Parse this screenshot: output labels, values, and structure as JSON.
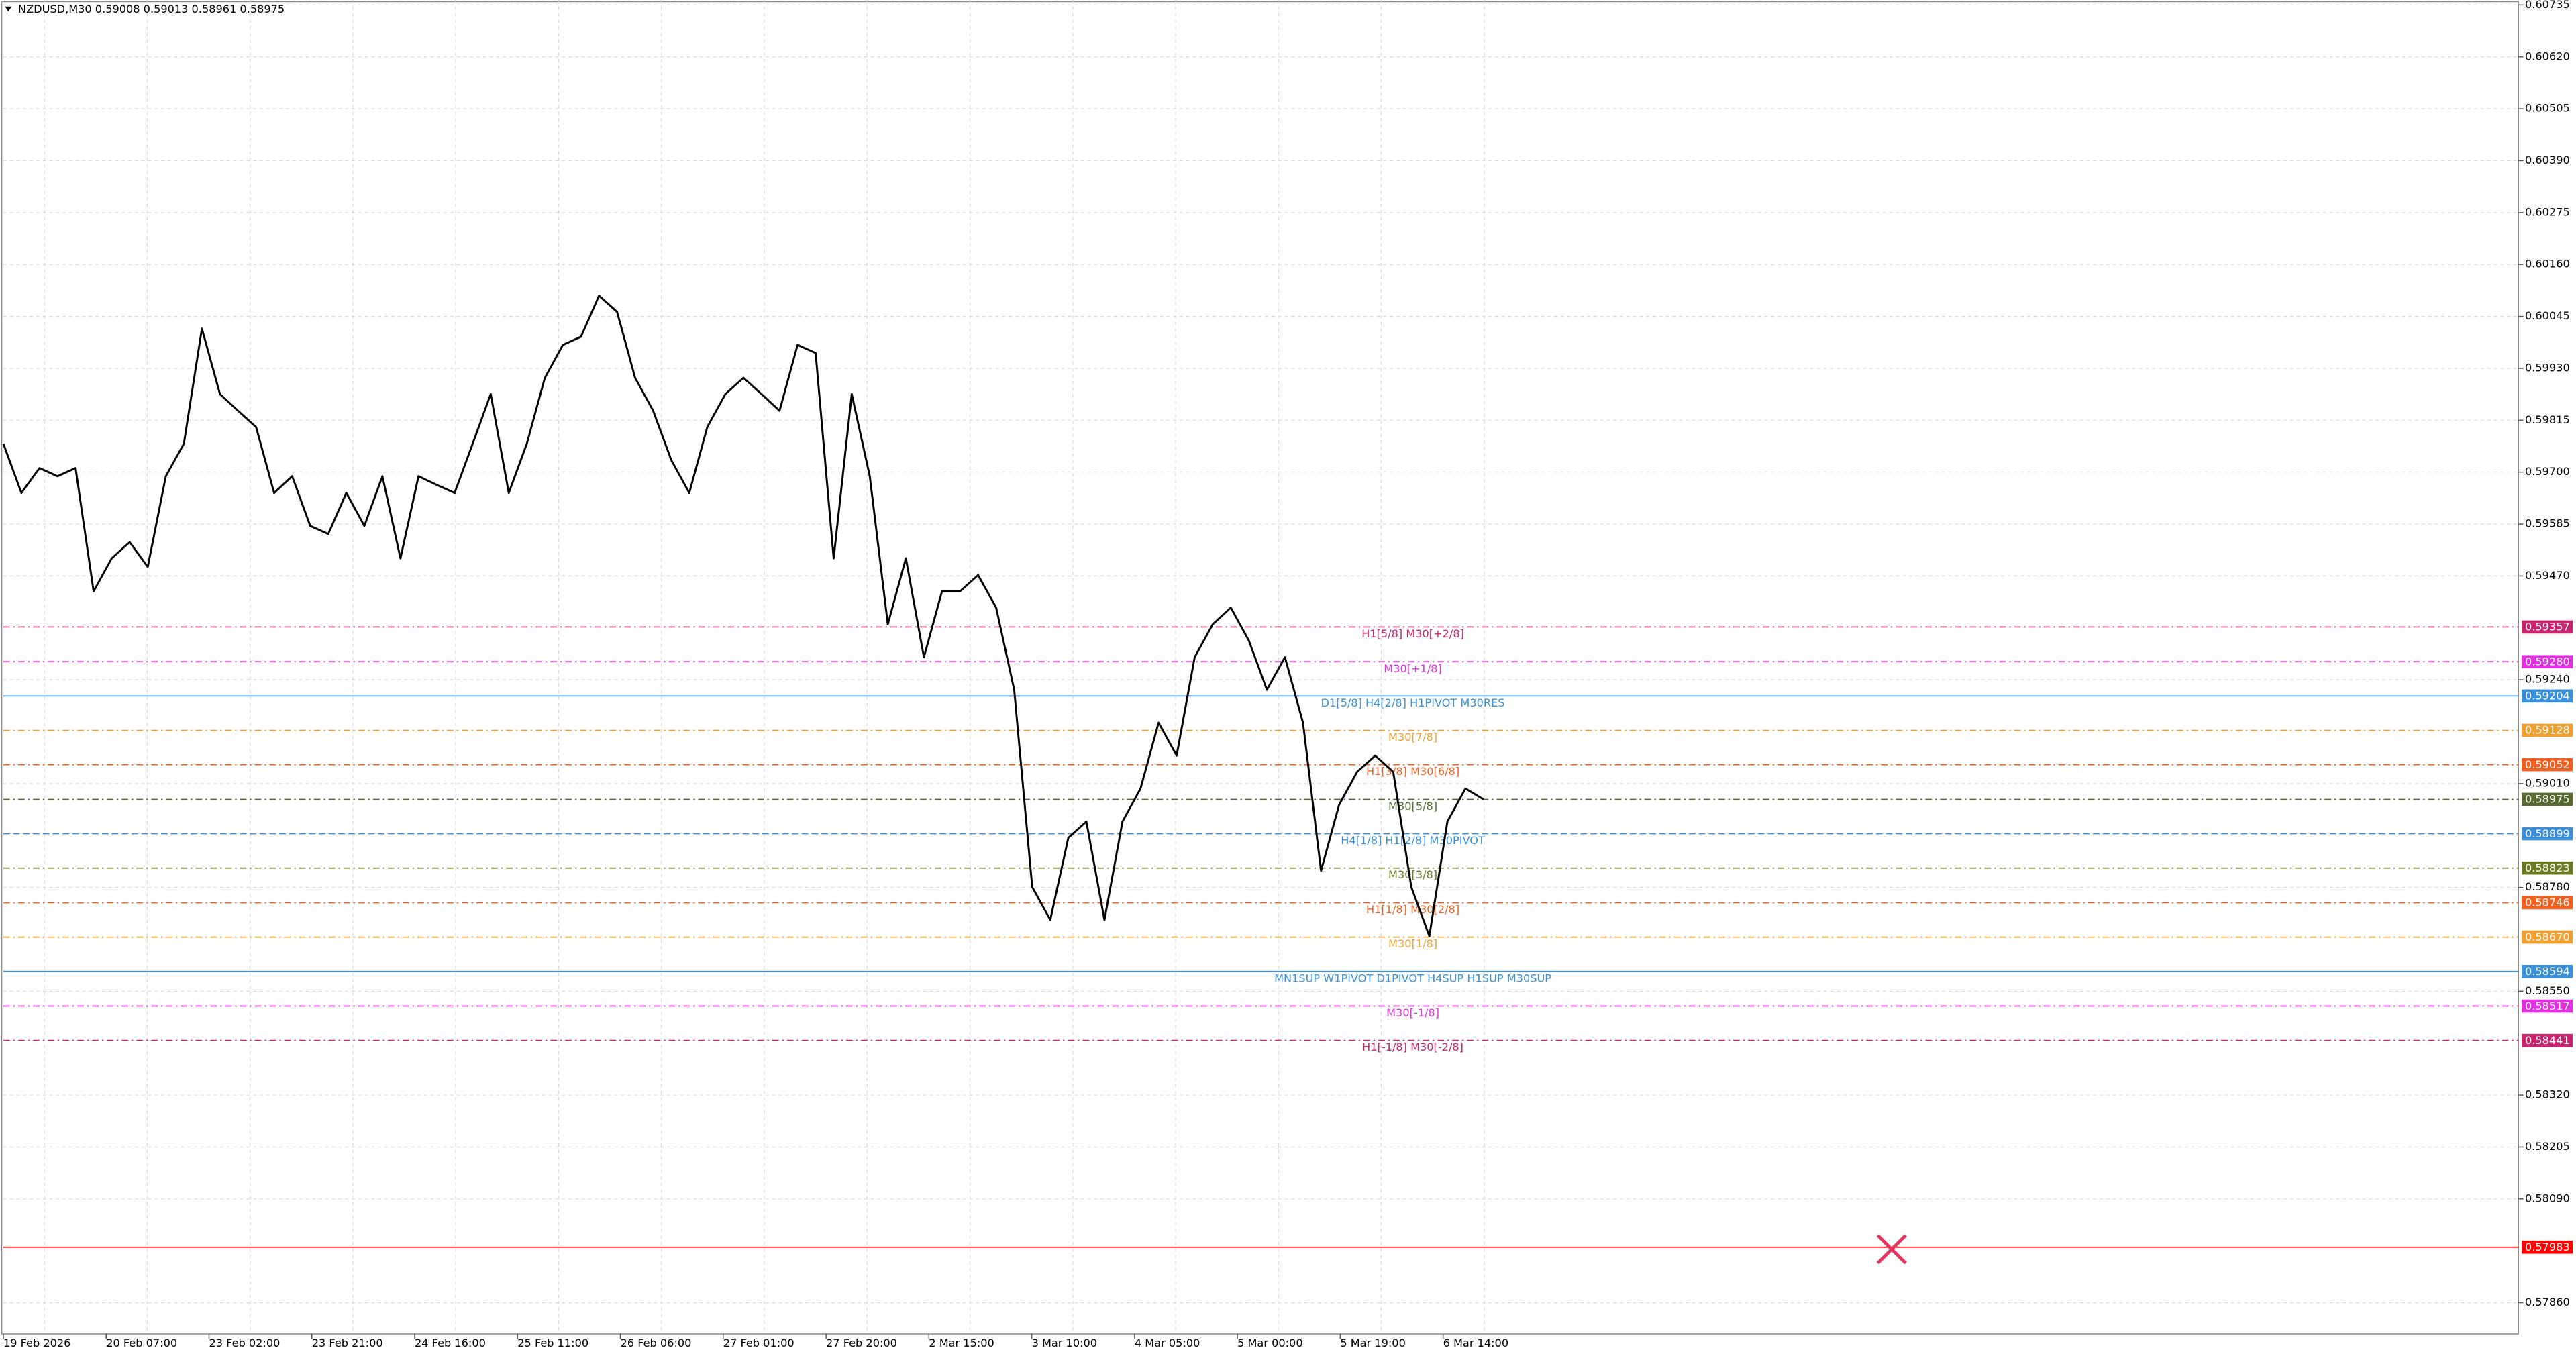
{
  "chart_data": {
    "type": "line",
    "title": "NZDUSD,M30  0.59008 0.59013 0.58961 0.58975",
    "color": "#000000",
    "values": [
      0.59763,
      0.59654,
      0.59709,
      0.59691,
      0.59709,
      0.59436,
      0.59509,
      0.59545,
      0.5949,
      0.59691,
      0.59763,
      0.60018,
      0.59873,
      0.59836,
      0.598,
      0.59654,
      0.59691,
      0.59581,
      0.59563,
      0.59654,
      0.59581,
      0.59691,
      0.59509,
      0.59691,
      0.59672,
      0.59654,
      0.59763,
      0.59873,
      0.59654,
      0.59763,
      0.59909,
      0.59982,
      0.6,
      0.60091,
      0.60055,
      0.59909,
      0.59836,
      0.59727,
      0.59654,
      0.598,
      0.59873,
      0.59909,
      0.59873,
      0.59836,
      0.59982,
      0.59964,
      0.59509,
      0.59873,
      0.59691,
      0.59363,
      0.59509,
      0.5929,
      0.59436,
      0.59436,
      0.59472,
      0.594,
      0.59218,
      0.58781,
      0.58708,
      0.5889,
      0.58926,
      0.58708,
      0.58926,
      0.58999,
      0.59145,
      0.59072,
      0.5929,
      0.59363,
      0.594,
      0.59327,
      0.59218,
      0.5929,
      0.59145,
      0.58817,
      0.58963,
      0.59036,
      0.59072,
      0.59036,
      0.58781,
      0.58672,
      0.58926,
      0.58999,
      0.58975
    ],
    "x_labels": [
      "19 Feb 2026",
      "20 Feb 07:00",
      "23 Feb 02:00",
      "23 Feb 21:00",
      "24 Feb 16:00",
      "25 Feb 11:00",
      "26 Feb 06:00",
      "27 Feb 01:00",
      "27 Feb 20:00",
      "2 Mar 15:00",
      "3 Mar 10:00",
      "4 Mar 05:00",
      "5 Mar 00:00",
      "5 Mar 19:00",
      "6 Mar 14:00"
    ],
    "ylim": [
      0.57791,
      0.60746
    ],
    "yticks": [
      {
        "value": 0.60735,
        "label": "0.60735"
      },
      {
        "value": 0.6062,
        "label": "0.60620"
      },
      {
        "value": 0.60505,
        "label": "0.60505"
      },
      {
        "value": 0.6039,
        "label": "0.60390"
      },
      {
        "value": 0.60275,
        "label": "0.60275"
      },
      {
        "value": 0.6016,
        "label": "0.60160"
      },
      {
        "value": 0.60045,
        "label": "0.60045"
      },
      {
        "value": 0.5993,
        "label": "0.59930"
      },
      {
        "value": 0.59815,
        "label": "0.59815"
      },
      {
        "value": 0.597,
        "label": "0.59700"
      },
      {
        "value": 0.59585,
        "label": "0.59585"
      },
      {
        "value": 0.5947,
        "label": "0.59470"
      },
      {
        "value": 0.5924,
        "label": "0.59240"
      },
      {
        "value": 0.5901,
        "label": "0.59010"
      },
      {
        "value": 0.5878,
        "label": "0.58780"
      },
      {
        "value": 0.5855,
        "label": "0.58550"
      },
      {
        "value": 0.5832,
        "label": "0.58320"
      },
      {
        "value": 0.58205,
        "label": "0.58205"
      },
      {
        "value": 0.5809,
        "label": "0.58090"
      },
      {
        "value": 0.5786,
        "label": "0.57860"
      }
    ],
    "grid": true,
    "levels": [
      {
        "price": 0.59357,
        "price_label": "0.59357",
        "label": "H1[5/8] M30[+2/8]",
        "color": "#c8246e",
        "style": "dashdot"
      },
      {
        "price": 0.5928,
        "price_label": "0.59280",
        "label": "M30[+1/8]",
        "color": "#e030e0",
        "style": "dashdot"
      },
      {
        "price": 0.59204,
        "price_label": "0.59204",
        "label": "D1[5/8] H4[2/8] H1PIVOT M30RES",
        "color": "#3a8fd9",
        "style": "solid"
      },
      {
        "price": 0.59128,
        "price_label": "0.59128",
        "label": "M30[7/8]",
        "color": "#f0a030",
        "style": "dashdot"
      },
      {
        "price": 0.59052,
        "price_label": "0.59052",
        "label": "H1[3/8] M30[6/8]",
        "color": "#f06020",
        "style": "dashdot"
      },
      {
        "price": 0.58975,
        "price_label": "0.58975",
        "label": "M30[5/8]",
        "color": "#556b2f",
        "style": "dashdot"
      },
      {
        "price": 0.58899,
        "price_label": "0.58899",
        "label": "H4[1/8] H1[2/8] M30PIVOT",
        "color": "#3a8fd9",
        "style": "dashed"
      },
      {
        "price": 0.58823,
        "price_label": "0.58823",
        "label": "M30[3/8]",
        "color": "#6b7a20",
        "style": "dashdot"
      },
      {
        "price": 0.58746,
        "price_label": "0.58746",
        "label": "H1[1/8] M30[2/8]",
        "color": "#f06020",
        "style": "dashdot"
      },
      {
        "price": 0.5867,
        "price_label": "0.58670",
        "label": "M30[1/8]",
        "color": "#f0a030",
        "style": "dashdot"
      },
      {
        "price": 0.58594,
        "price_label": "0.58594",
        "label": "MN1SUP W1PIVOT D1PIVOT H4SUP H1SUP M30SUP",
        "color": "#3a8fd9",
        "style": "solid"
      },
      {
        "price": 0.58517,
        "price_label": "0.58517",
        "label": "M30[-1/8]",
        "color": "#e030e0",
        "style": "dashdot"
      },
      {
        "price": 0.58441,
        "price_label": "0.58441",
        "label": "H1[-1/8] M30[-2/8]",
        "color": "#c8246e",
        "style": "dashdot"
      },
      {
        "price": 0.57983,
        "price_label": "0.57983",
        "color": "#ff0000",
        "style": "solid"
      }
    ]
  }
}
